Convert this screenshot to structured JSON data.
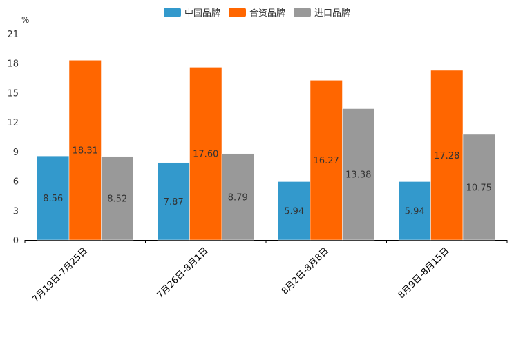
{
  "chart_data": {
    "type": "bar",
    "title": "",
    "unit": "%",
    "xlabel": "",
    "ylabel": "%",
    "ylim": [
      0,
      21
    ],
    "yticks": [
      0,
      3,
      6,
      9,
      12,
      15,
      18,
      21
    ],
    "categories": [
      "7月19日-7月25日",
      "7月26日-8月1日",
      "8月2日-8月8日",
      "8月9日-8月15日"
    ],
    "series": [
      {
        "name": "中国品牌",
        "color": "#3399CC",
        "values": [
          8.56,
          7.87,
          5.94,
          5.94
        ],
        "labels": [
          "8.56",
          "7.87",
          "5.94",
          "5.94"
        ]
      },
      {
        "name": "合资品牌",
        "color": "#FF6600",
        "values": [
          18.31,
          17.6,
          16.27,
          17.28
        ],
        "labels": [
          "18.31",
          "17.60",
          "16.27",
          "17.28"
        ]
      },
      {
        "name": "进口品牌",
        "color": "#999999",
        "values": [
          8.52,
          8.79,
          13.38,
          10.75
        ],
        "labels": [
          "8.52",
          "8.79",
          "13.38",
          "10.75"
        ]
      }
    ],
    "legend_position": "top-center",
    "grid": false
  }
}
